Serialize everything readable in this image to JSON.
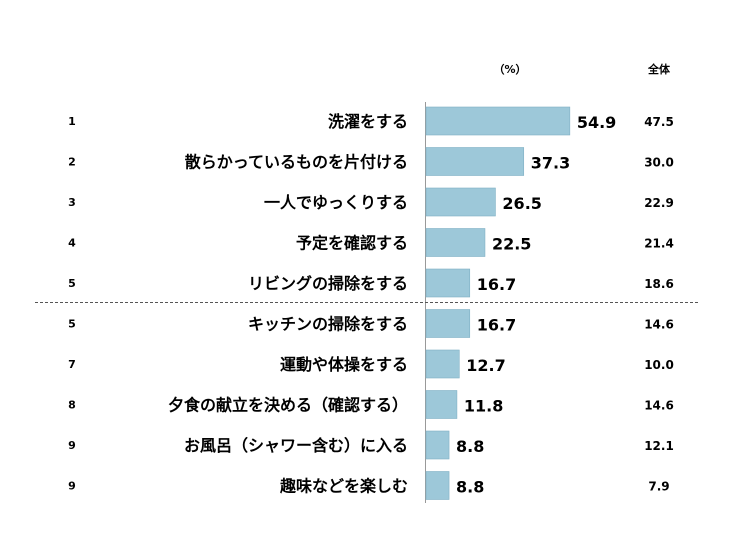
{
  "chart_data": {
    "type": "bar",
    "orientation": "horizontal",
    "unit_label": "（%）",
    "total_header": "全体",
    "ranks": [
      "1",
      "2",
      "3",
      "4",
      "5",
      "5",
      "7",
      "8",
      "9",
      "9"
    ],
    "categories": [
      "洗濯をする",
      "散らかっているものを片付ける",
      "一人でゆっくりする",
      "予定を確認する",
      "リビングの掃除をする",
      "キッチンの掃除をする",
      "運動や体操をする",
      "夕食の献立を決める（確認する）",
      "お風呂（シャワー含む）に入る",
      "趣味などを楽しむ"
    ],
    "values": [
      54.9,
      37.3,
      26.5,
      22.5,
      16.7,
      16.7,
      12.7,
      11.8,
      8.8,
      8.8
    ],
    "value_labels": [
      "54.9",
      "37.3",
      "26.5",
      "22.5",
      "16.7",
      "16.7",
      "12.7",
      "11.8",
      "8.8",
      "8.8"
    ],
    "total_values": [
      "47.5",
      "30.0",
      "22.9",
      "21.4",
      "18.6",
      "14.6",
      "10.0",
      "14.6",
      "12.1",
      "7.9"
    ],
    "separator_after_index": 4,
    "bar_color": "#9dc8d9",
    "bar_edge_color": "#7fb0c4"
  }
}
